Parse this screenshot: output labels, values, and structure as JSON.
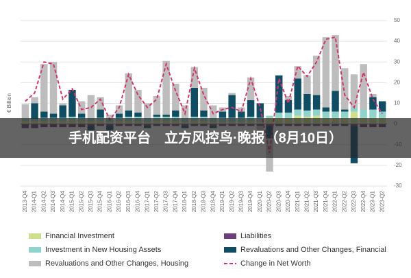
{
  "chart_data": {
    "type": "bar",
    "banner": "手机配资平台　立方风控鸟·晚报（8月10日）",
    "ylabel": "€ Billion",
    "categories": [
      "2013-Q4",
      "2014-Q1",
      "2014-Q2",
      "2014-Q3",
      "2014-Q4",
      "2015-Q1",
      "2015-Q2",
      "2015-Q3",
      "2015-Q4",
      "2016-Q1",
      "2016-Q2",
      "2016-Q3",
      "2016-Q4",
      "2017-Q1",
      "2017-Q2",
      "2017-Q3",
      "2017-Q4",
      "2018-Q1",
      "2018-Q2",
      "2018-Q3",
      "2018-Q4",
      "2019-Q1",
      "2019-Q2",
      "2019-Q3",
      "2019-Q4",
      "2020-Q1",
      "2020-Q2",
      "2020-Q3",
      "2020-Q4",
      "2021-Q1",
      "2021-Q2",
      "2021-Q3",
      "2021-Q4",
      "2022-Q1",
      "2022-Q2",
      "2022-Q3",
      "2022-Q4",
      "2023-Q1",
      "2023-Q2"
    ],
    "series": [
      {
        "name": "Financial Investment",
        "color": "#cfe08c",
        "values": [
          1.5,
          1.5,
          1.5,
          1.5,
          1.5,
          2,
          1.5,
          1.5,
          1.5,
          1,
          1.5,
          1.5,
          1.5,
          1,
          1.5,
          1.5,
          1.5,
          1,
          1.5,
          1.5,
          1,
          1,
          1,
          1,
          1.5,
          1,
          3,
          3,
          3,
          4,
          3.5,
          4,
          3,
          3,
          3,
          6,
          3,
          3,
          3
        ]
      },
      {
        "name": "Liabilities",
        "color": "#6b3f7c",
        "values": [
          -2,
          -2,
          -1.5,
          -1.5,
          -1.5,
          -1.5,
          -1.5,
          -1,
          -1,
          -1,
          -1,
          -1,
          -1,
          -1,
          -1,
          -1,
          -1,
          -1,
          -1,
          -1,
          -1,
          -1,
          -1,
          -1,
          -1,
          -1,
          -1,
          -1,
          -1,
          -1,
          -1,
          -1,
          -1,
          -1,
          -1,
          -1,
          -1.5,
          -1.5,
          -1.5
        ]
      },
      {
        "name": "Investment in New Housing Assets",
        "color": "#8fd4cc",
        "values": [
          1,
          1,
          1.5,
          1.5,
          1.5,
          1.5,
          1.5,
          1.5,
          1.5,
          1.5,
          1.5,
          2,
          2,
          2,
          2,
          2,
          2,
          2,
          2,
          2,
          2,
          2,
          2,
          2,
          2,
          2,
          1,
          2.5,
          2.5,
          3,
          3,
          3,
          3,
          3,
          3,
          2,
          4,
          4,
          3
        ]
      },
      {
        "name": "Revaluations and Other Changes, Financial",
        "color": "#0e4d64",
        "values": [
          0,
          7.5,
          3,
          2,
          6,
          13,
          2,
          -2,
          4,
          -2,
          2,
          3,
          2,
          -1,
          1,
          1,
          3,
          -1,
          14,
          3,
          -1,
          3,
          11,
          3,
          8,
          7,
          -6,
          18,
          6,
          15,
          8,
          7,
          2,
          10,
          1,
          -18,
          0,
          6,
          5
        ]
      },
      {
        "name": "Revaluations and Other Changes, Housing",
        "color": "#bdbdbd",
        "values": [
          7,
          3,
          23,
          25,
          1,
          0,
          6,
          11,
          6,
          2,
          4,
          18,
          11,
          7,
          9,
          26,
          13,
          6,
          10,
          11,
          6,
          2,
          1,
          2,
          11,
          -2,
          -16,
          0,
          2,
          6,
          9,
          19,
          34,
          27,
          20,
          16,
          22,
          1.5,
          0
        ]
      },
      {
        "name": "Change in Net Worth",
        "color": "#d6336c",
        "type": "line",
        "values": [
          11,
          15,
          30,
          29,
          12,
          17,
          7,
          8,
          12,
          2,
          8,
          24,
          14,
          8,
          12,
          29,
          16,
          5,
          27,
          14,
          5,
          7,
          8,
          6,
          22,
          8,
          -14,
          22,
          10,
          28,
          23,
          30,
          41,
          42,
          14,
          8,
          25,
          12,
          5
        ]
      }
    ],
    "ylim": [
      -30,
      50
    ],
    "yticks": [
      -30,
      -20,
      -10,
      0,
      10,
      20,
      30,
      40,
      50
    ],
    "grid": true
  }
}
